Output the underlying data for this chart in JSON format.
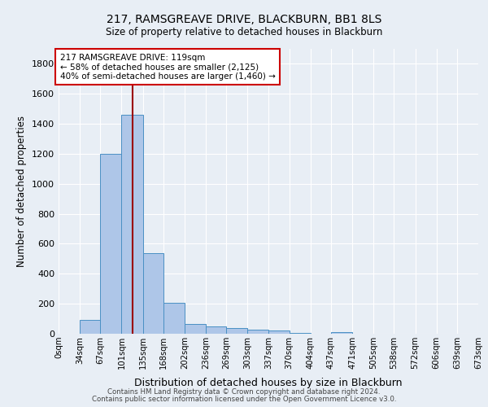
{
  "title": "217, RAMSGREAVE DRIVE, BLACKBURN, BB1 8LS",
  "subtitle": "Size of property relative to detached houses in Blackburn",
  "xlabel": "Distribution of detached houses by size in Blackburn",
  "ylabel": "Number of detached properties",
  "footnote1": "Contains HM Land Registry data © Crown copyright and database right 2024.",
  "footnote2": "Contains public sector information licensed under the Open Government Licence v3.0.",
  "annotation_line1": "217 RAMSGREAVE DRIVE: 119sqm",
  "annotation_line2": "← 58% of detached houses are smaller (2,125)",
  "annotation_line3": "40% of semi-detached houses are larger (1,460) →",
  "property_size": 119,
  "bar_edges": [
    0,
    34,
    67,
    101,
    135,
    168,
    202,
    236,
    269,
    303,
    337,
    370,
    404,
    437,
    471,
    505,
    538,
    572,
    606,
    639,
    673
  ],
  "bar_heights": [
    0,
    90,
    1200,
    1460,
    540,
    205,
    65,
    50,
    40,
    28,
    22,
    8,
    0,
    12,
    0,
    0,
    0,
    0,
    0,
    0
  ],
  "bar_color": "#aec6e8",
  "bar_edge_color": "#4a90c4",
  "red_line_color": "#9b0000",
  "annotation_box_color": "#cc0000",
  "bg_color": "#e8eef5",
  "plot_bg_color": "#e8eef5",
  "ylim": [
    0,
    1900
  ],
  "yticks": [
    0,
    200,
    400,
    600,
    800,
    1000,
    1200,
    1400,
    1600,
    1800
  ],
  "tick_labels": [
    "0sqm",
    "34sqm",
    "67sqm",
    "101sqm",
    "135sqm",
    "168sqm",
    "202sqm",
    "236sqm",
    "269sqm",
    "303sqm",
    "337sqm",
    "370sqm",
    "404sqm",
    "437sqm",
    "471sqm",
    "505sqm",
    "538sqm",
    "572sqm",
    "606sqm",
    "639sqm",
    "673sqm"
  ]
}
